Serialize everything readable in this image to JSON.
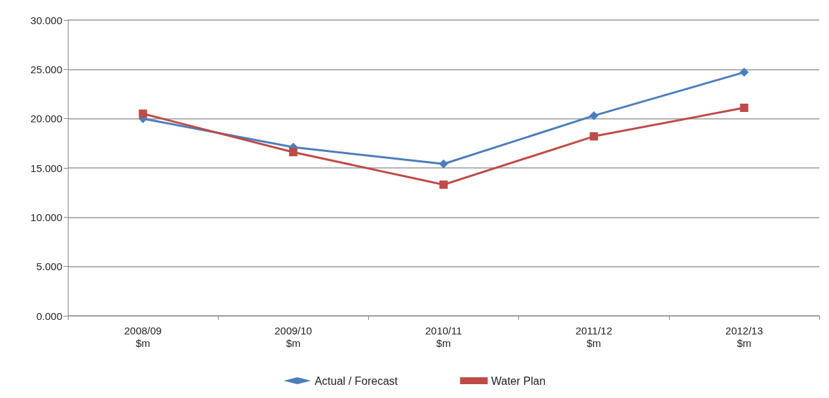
{
  "chart_data": {
    "type": "line",
    "categories": [
      "2008/09\n$m",
      "2009/10\n$m",
      "2010/11\n$m",
      "2011/12\n$m",
      "2012/13\n$m"
    ],
    "series": [
      {
        "name": "Actual / Forecast",
        "color": "#4a7ebb",
        "marker": "diamond",
        "values": [
          20.0,
          17.1,
          15.4,
          20.3,
          24.7
        ]
      },
      {
        "name": "Water Plan",
        "color": "#be4b48",
        "marker": "square",
        "values": [
          20.5,
          16.6,
          13.3,
          18.2,
          21.1
        ]
      }
    ],
    "ylim": [
      0,
      30
    ],
    "yticks": [
      {
        "value": 0,
        "label": "0.000"
      },
      {
        "value": 5,
        "label": "5.000"
      },
      {
        "value": 10,
        "label": "10.000"
      },
      {
        "value": 15,
        "label": "15.000"
      },
      {
        "value": 20,
        "label": "20.000"
      },
      {
        "value": 25,
        "label": "25.000"
      },
      {
        "value": 30,
        "label": "30.000"
      }
    ],
    "grid": "y",
    "legend": "bottom",
    "line_style": "solid"
  }
}
